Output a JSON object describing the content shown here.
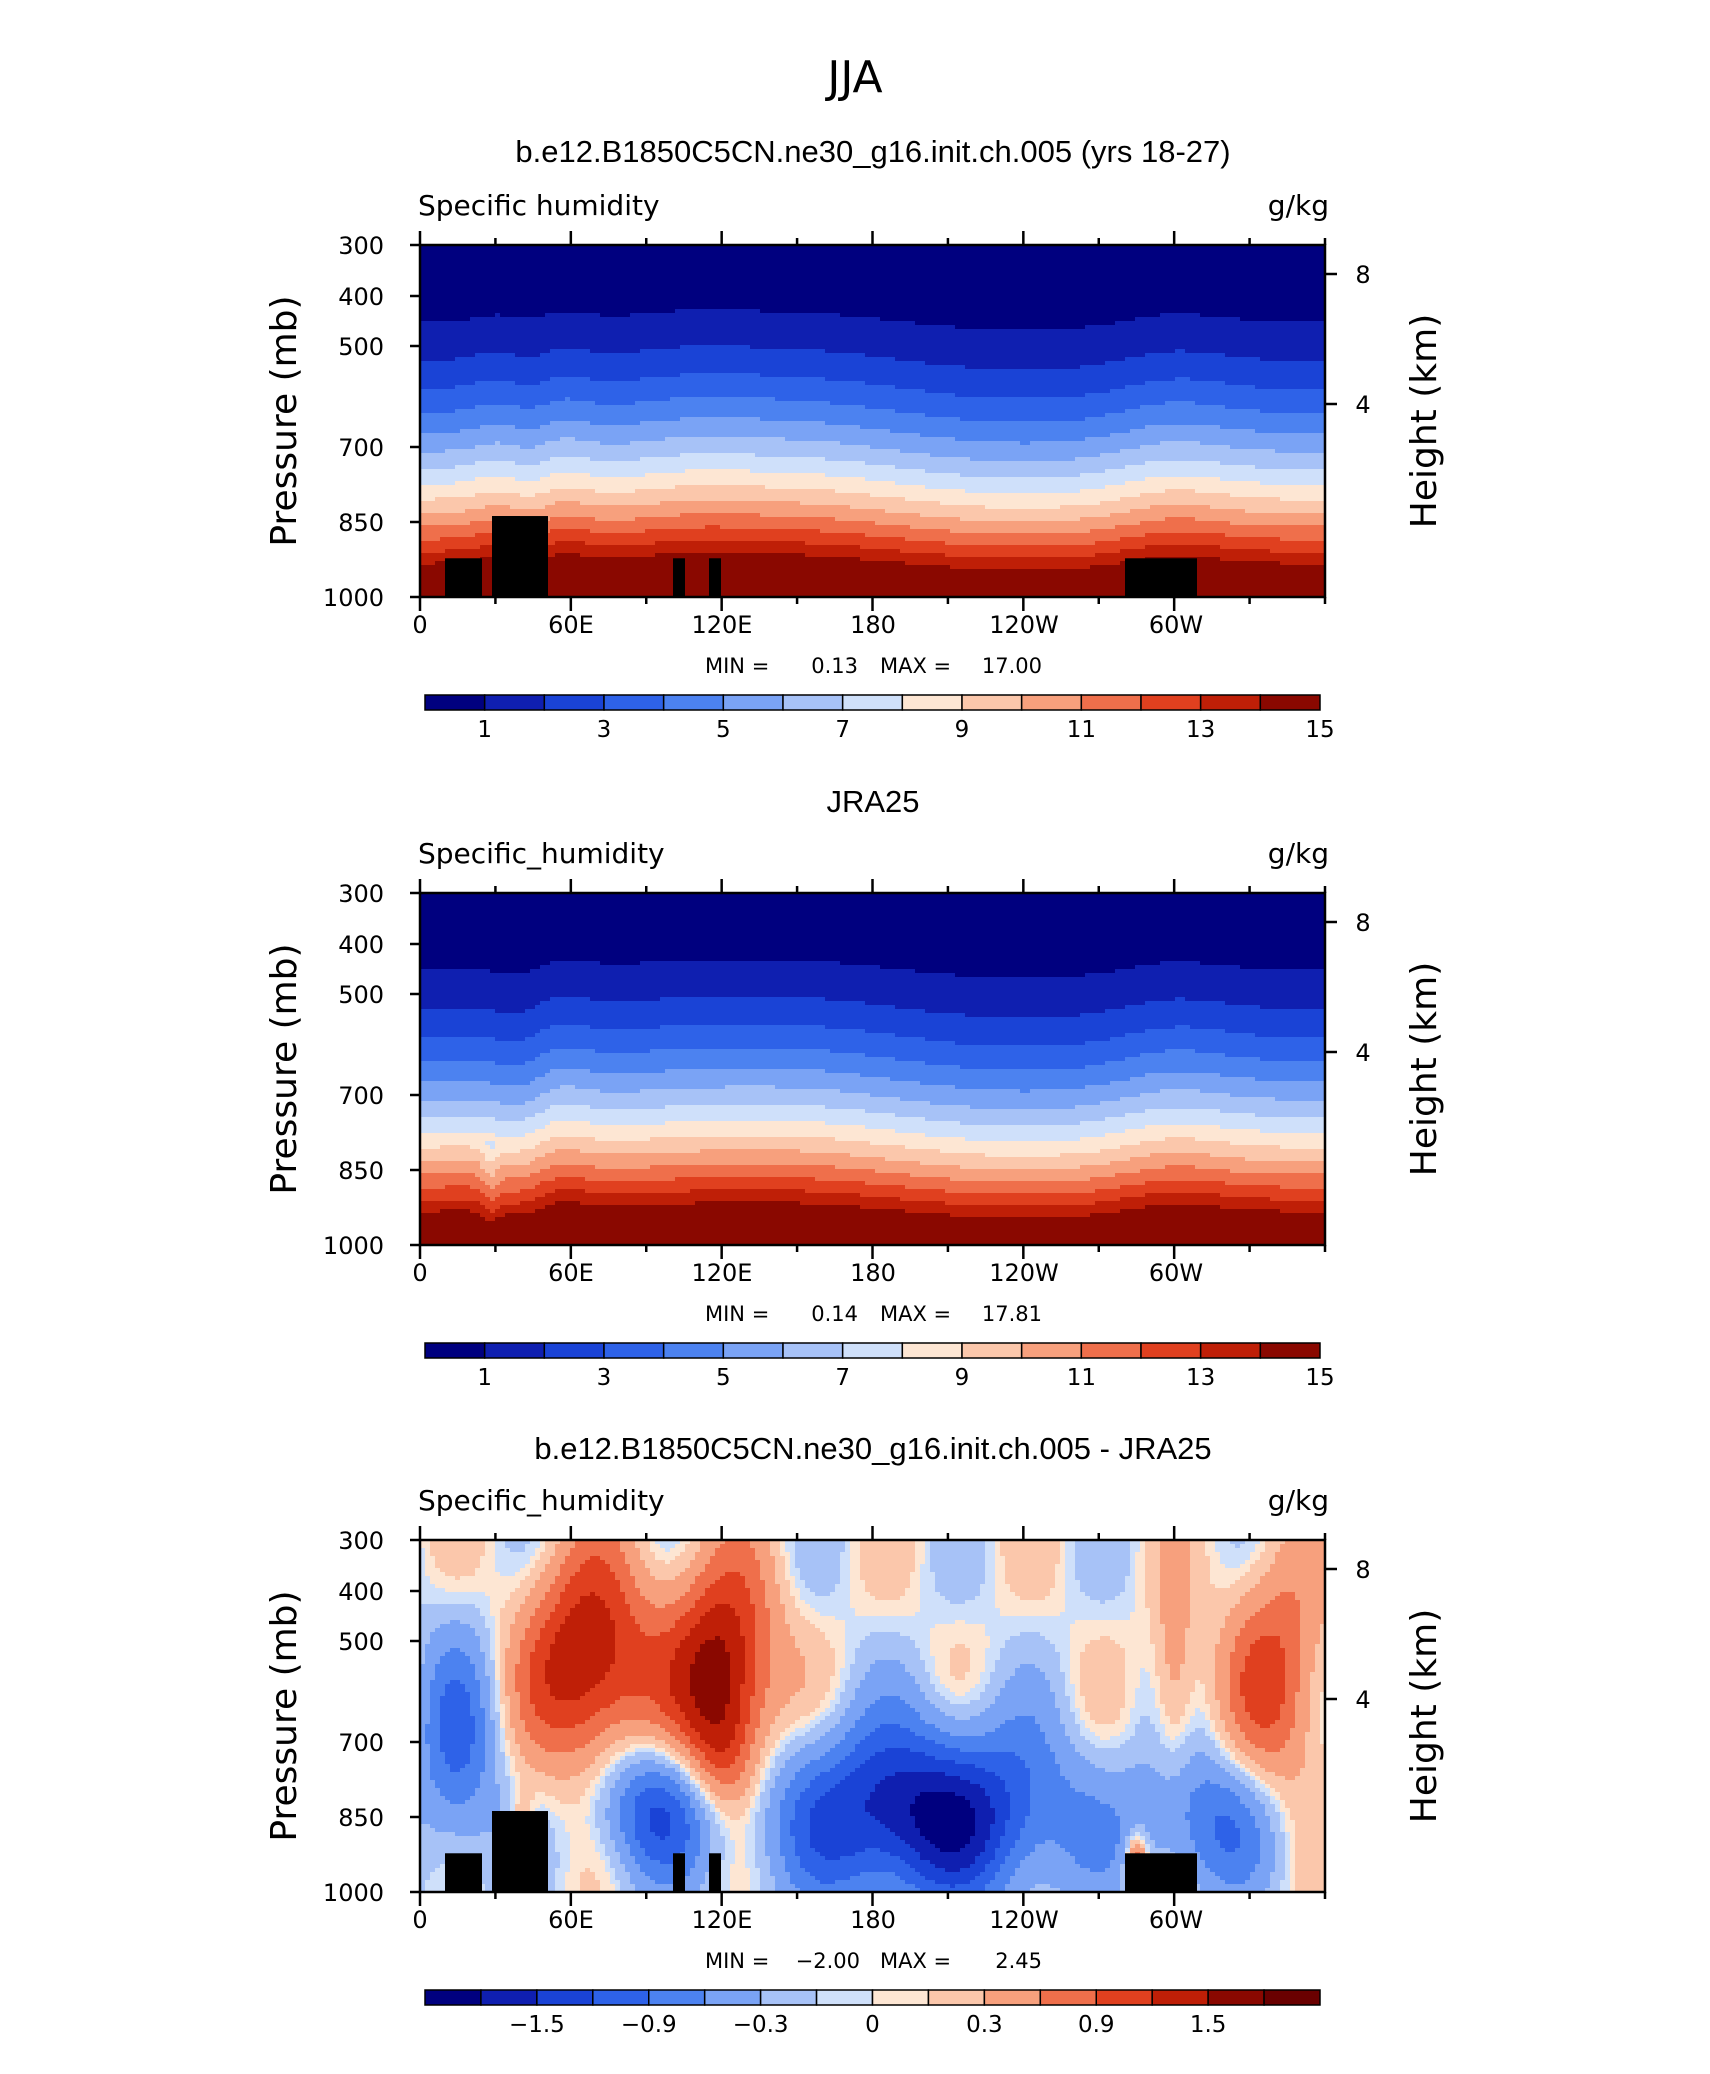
{
  "figure_title": "JJA",
  "colors": {
    "seq": [
      "#00007f",
      "#0f1fb0",
      "#1a43d6",
      "#2e62e8",
      "#4c82f0",
      "#7aa3f5",
      "#a7c2f7",
      "#cfe0fa",
      "#fde6d3",
      "#fbc7ab",
      "#f7a07d",
      "#ef6f4b",
      "#e0401f",
      "#bf1f07",
      "#8a0800"
    ],
    "div": [
      "#00007f",
      "#0f1fb0",
      "#1a43d6",
      "#2e62e8",
      "#4c82f0",
      "#7aa3f5",
      "#a7c2f7",
      "#cfe0fa",
      "#fde6d3",
      "#fbc7ab",
      "#f7a07d",
      "#ef6f4b",
      "#e0401f",
      "#bf1f07",
      "#8a0800",
      "#6a0000"
    ],
    "land": "#000000"
  },
  "chart_data": [
    {
      "type": "heatmap",
      "title": "b.e12.B1850C5CN.ne30_g16.init.ch.005 (yrs 18-27)",
      "left_label": "Specific humidity",
      "right_label": "g/kg",
      "ylabel": "Pressure (mb)",
      "y2label": "Height (km)",
      "x_ticks": [
        "0",
        "60E",
        "120E",
        "180",
        "120W",
        "60W"
      ],
      "y_ticks": [
        "300",
        "400",
        "500",
        "700",
        "850",
        "1000"
      ],
      "y2_ticks": [
        "8",
        "4"
      ],
      "ylim": [
        1000,
        300
      ],
      "min_label": "MIN =",
      "min_value": "0.13",
      "max_label": "MAX =",
      "max_value": "17.00",
      "colorbar_labels": [
        "1",
        "3",
        "5",
        "7",
        "9",
        "11",
        "13",
        "15"
      ],
      "levels": [
        1,
        2,
        3,
        4,
        5,
        6,
        7,
        8,
        9,
        10,
        11,
        12,
        13,
        14
      ],
      "field": "model",
      "vmin": 0.13,
      "vmax": 17.0
    },
    {
      "type": "heatmap",
      "title": "JRA25",
      "left_label": "Specific_humidity",
      "right_label": "g/kg",
      "ylabel": "Pressure (mb)",
      "y2label": "Height (km)",
      "x_ticks": [
        "0",
        "60E",
        "120E",
        "180",
        "120W",
        "60W"
      ],
      "y_ticks": [
        "300",
        "400",
        "500",
        "700",
        "850",
        "1000"
      ],
      "y2_ticks": [
        "8",
        "4"
      ],
      "ylim": [
        1000,
        300
      ],
      "min_label": "MIN =",
      "min_value": "0.14",
      "max_label": "MAX =",
      "max_value": "17.81",
      "colorbar_labels": [
        "1",
        "3",
        "5",
        "7",
        "9",
        "11",
        "13",
        "15"
      ],
      "levels": [
        1,
        2,
        3,
        4,
        5,
        6,
        7,
        8,
        9,
        10,
        11,
        12,
        13,
        14
      ],
      "field": "obs",
      "vmin": 0.14,
      "vmax": 17.81
    },
    {
      "type": "heatmap",
      "title": "b.e12.B1850C5CN.ne30_g16.init.ch.005 - JRA25",
      "left_label": "Specific_humidity",
      "right_label": "g/kg",
      "ylabel": "Pressure (mb)",
      "y2label": "Height (km)",
      "x_ticks": [
        "0",
        "60E",
        "120E",
        "180",
        "120W",
        "60W"
      ],
      "y_ticks": [
        "300",
        "400",
        "500",
        "700",
        "850",
        "1000"
      ],
      "y2_ticks": [
        "8",
        "4"
      ],
      "ylim": [
        1000,
        300
      ],
      "min_label": "MIN =",
      "min_value": "−2.00",
      "max_label": "MAX =",
      "max_value": "2.45",
      "colorbar_labels": [
        "−1.5",
        "−0.9",
        "−0.3",
        "0",
        "0.3",
        "0.9",
        "1.5"
      ],
      "levels": [
        -1.8,
        -1.5,
        -1.2,
        -0.9,
        -0.6,
        -0.3,
        -0.1,
        0,
        0.1,
        0.3,
        0.6,
        0.9,
        1.2,
        1.5,
        1.8
      ],
      "field": "diff",
      "vmin": -2.0,
      "vmax": 2.45
    }
  ]
}
